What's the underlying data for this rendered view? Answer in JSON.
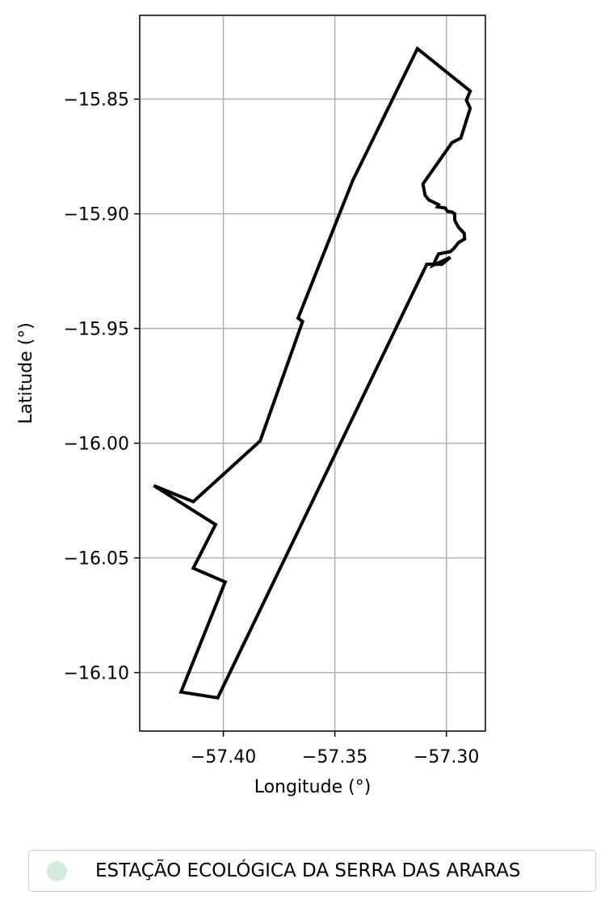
{
  "chart_data": {
    "type": "map",
    "xlabel": "Longitude (°)",
    "ylabel": "Latitude (°)",
    "xlim": [
      -57.4375,
      -57.2825
    ],
    "ylim": [
      -16.1255,
      -15.8135
    ],
    "x_ticks": [
      {
        "value": -57.4,
        "label": "−57.40"
      },
      {
        "value": -57.35,
        "label": "−57.35"
      },
      {
        "value": -57.3,
        "label": "−57.30"
      }
    ],
    "y_ticks": [
      {
        "value": -15.85,
        "label": "−15.85"
      },
      {
        "value": -15.9,
        "label": "−15.90"
      },
      {
        "value": -15.95,
        "label": "−15.95"
      },
      {
        "value": -16.0,
        "label": "−16.00"
      },
      {
        "value": -16.05,
        "label": "−16.05"
      },
      {
        "value": -16.1,
        "label": "−16.10"
      }
    ],
    "grid": true,
    "legend_position": "bottom-center",
    "series": [
      {
        "name": "ESTAÇÃO ECOLÓGICA DA SERRA DAS ARARAS",
        "color": "#d1ebdd",
        "edgecolor": "#000000",
        "geometry": "polygon",
        "coordinates": [
          [
            -57.313,
            -15.828
          ],
          [
            -57.2893,
            -15.8465
          ],
          [
            -57.291,
            -15.8505
          ],
          [
            -57.2893,
            -15.854
          ],
          [
            -57.2935,
            -15.867
          ],
          [
            -57.2975,
            -15.869
          ],
          [
            -57.3105,
            -15.887
          ],
          [
            -57.3095,
            -15.892
          ],
          [
            -57.3078,
            -15.894
          ],
          [
            -57.3035,
            -15.896
          ],
          [
            -57.304,
            -15.897
          ],
          [
            -57.3005,
            -15.8975
          ],
          [
            -57.2995,
            -15.899
          ],
          [
            -57.2975,
            -15.8992
          ],
          [
            -57.2963,
            -15.9
          ],
          [
            -57.2962,
            -15.903
          ],
          [
            -57.2945,
            -15.906
          ],
          [
            -57.292,
            -15.9085
          ],
          [
            -57.2918,
            -15.911
          ],
          [
            -57.2945,
            -15.9125
          ],
          [
            -57.2965,
            -15.915
          ],
          [
            -57.2982,
            -15.9165
          ],
          [
            -57.3035,
            -15.9175
          ],
          [
            -57.306,
            -15.9225
          ],
          [
            -57.2982,
            -15.919
          ],
          [
            -57.302,
            -15.922
          ],
          [
            -57.3088,
            -15.922
          ],
          [
            -57.4025,
            -16.111
          ],
          [
            -57.419,
            -16.1085
          ],
          [
            -57.3992,
            -16.0605
          ],
          [
            -57.4135,
            -16.0545
          ],
          [
            -57.4035,
            -16.0355
          ],
          [
            -57.4312,
            -16.0185
          ],
          [
            -57.4135,
            -16.0255
          ],
          [
            -57.3835,
            -15.999
          ],
          [
            -57.3645,
            -15.947
          ],
          [
            -57.3665,
            -15.9455
          ],
          [
            -57.342,
            -15.8855
          ],
          [
            -57.313,
            -15.828
          ]
        ]
      }
    ]
  }
}
